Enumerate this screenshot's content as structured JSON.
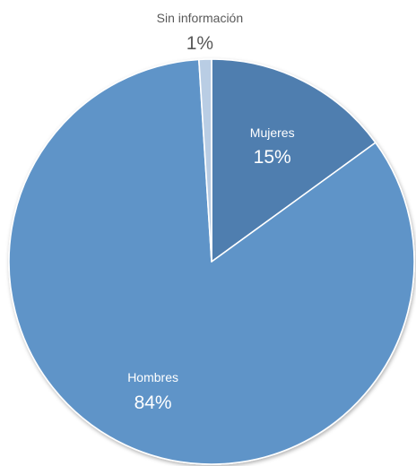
{
  "chart_data": {
    "type": "pie",
    "title": "",
    "start_angle_deg": 0,
    "direction": "clockwise",
    "slices": [
      {
        "label": "Mujeres",
        "value": 15,
        "value_label": "15%",
        "color": "#4f7eaf",
        "text_color": "#ffffff"
      },
      {
        "label": "Hombres",
        "value": 84,
        "value_label": "84%",
        "color": "#5e94c8",
        "text_color": "#ffffff"
      },
      {
        "label": "Sin información",
        "value": 1,
        "value_label": "1%",
        "color": "#b9cde4",
        "text_color": "#595959"
      }
    ]
  }
}
